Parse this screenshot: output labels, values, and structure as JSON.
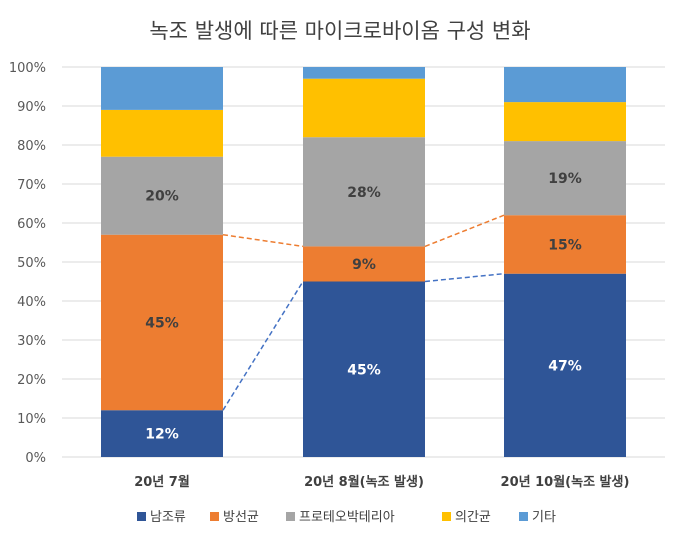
{
  "chart_data": {
    "type": "bar",
    "stacked": true,
    "title": "녹조 발생에 따른 마이크로바이옴 구성 변화",
    "categories": [
      "20년 7월",
      "20년 8월(녹조 발생)",
      "20년 10월(녹조 발생)"
    ],
    "series": [
      {
        "name": "남조류",
        "color": "#2F5597",
        "values": [
          12,
          45,
          47
        ],
        "labels": [
          "12%",
          "45%",
          "47%"
        ]
      },
      {
        "name": "방선균",
        "color": "#ED7D31",
        "values": [
          45,
          9,
          15
        ],
        "labels": [
          "45%",
          "9%",
          "15%"
        ]
      },
      {
        "name": "프로테오박테리아",
        "color": "#A5A5A5",
        "values": [
          20,
          28,
          19
        ],
        "labels": [
          "20%",
          "28%",
          "19%"
        ]
      },
      {
        "name": "의간균",
        "color": "#FFC000",
        "values": [
          12,
          15,
          10
        ]
      },
      {
        "name": "기타",
        "color": "#5B9BD5",
        "values": [
          11,
          3,
          9
        ]
      }
    ],
    "connector_lines": [
      {
        "series": "남조류",
        "style": "dashed"
      },
      {
        "series": "방선균",
        "style": "dashed"
      }
    ],
    "ylim": [
      0,
      100
    ],
    "yticks": [
      "0%",
      "10%",
      "20%",
      "30%",
      "40%",
      "50%",
      "60%",
      "70%",
      "80%",
      "90%",
      "100%"
    ],
    "grid": true,
    "legend": "bottom"
  }
}
